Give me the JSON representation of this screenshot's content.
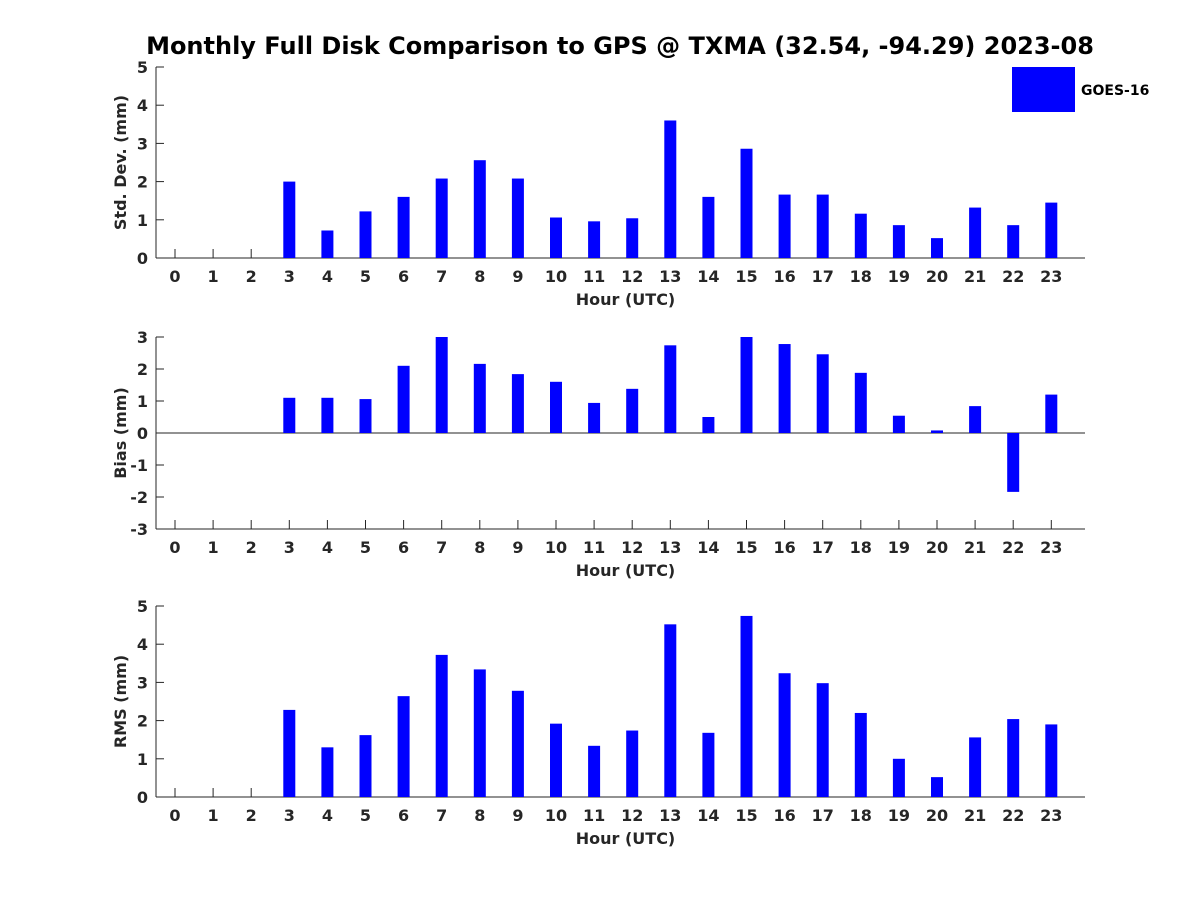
{
  "title": "Monthly Full Disk Comparison to GPS @ TXMA (32.54, -94.29) 2023-08",
  "legend": {
    "label": "GOES-16",
    "color": "#0000ff"
  },
  "chart_data": [
    {
      "type": "bar",
      "title": "Monthly Full Disk Comparison to GPS @ TXMA (32.54, -94.29) 2023-08",
      "xlabel": "Hour (UTC)",
      "ylabel": "Std. Dev. (mm)",
      "categories": [
        "0",
        "1",
        "2",
        "3",
        "4",
        "5",
        "6",
        "7",
        "8",
        "9",
        "10",
        "11",
        "12",
        "13",
        "14",
        "15",
        "16",
        "17",
        "18",
        "19",
        "20",
        "21",
        "22",
        "23"
      ],
      "series": [
        {
          "name": "GOES-16",
          "values": [
            null,
            null,
            null,
            2.0,
            0.72,
            1.22,
            1.6,
            2.08,
            2.56,
            2.08,
            1.06,
            0.96,
            1.04,
            3.6,
            1.6,
            2.86,
            1.66,
            1.66,
            1.16,
            0.86,
            0.52,
            1.32,
            0.86,
            1.45
          ]
        }
      ],
      "ylim": [
        0,
        5
      ],
      "yticks": [
        0,
        1,
        2,
        3,
        4,
        5
      ],
      "grid": false,
      "legend_position": "top-right"
    },
    {
      "type": "bar",
      "xlabel": "Hour (UTC)",
      "ylabel": "Bias (mm)",
      "categories": [
        "0",
        "1",
        "2",
        "3",
        "4",
        "5",
        "6",
        "7",
        "8",
        "9",
        "10",
        "11",
        "12",
        "13",
        "14",
        "15",
        "16",
        "17",
        "18",
        "19",
        "20",
        "21",
        "22",
        "23"
      ],
      "series": [
        {
          "name": "GOES-16",
          "values": [
            null,
            null,
            null,
            1.1,
            1.1,
            1.06,
            2.1,
            3.0,
            2.16,
            1.84,
            1.6,
            0.94,
            1.38,
            2.74,
            0.5,
            3.0,
            2.78,
            2.46,
            1.88,
            0.54,
            0.08,
            0.84,
            -1.84,
            1.2
          ]
        }
      ],
      "ylim": [
        -3,
        3
      ],
      "yticks": [
        -3,
        -2,
        -1,
        0,
        1,
        2,
        3
      ],
      "zero_line": true,
      "grid": false
    },
    {
      "type": "bar",
      "xlabel": "Hour (UTC)",
      "ylabel": "RMS (mm)",
      "categories": [
        "0",
        "1",
        "2",
        "3",
        "4",
        "5",
        "6",
        "7",
        "8",
        "9",
        "10",
        "11",
        "12",
        "13",
        "14",
        "15",
        "16",
        "17",
        "18",
        "19",
        "20",
        "21",
        "22",
        "23"
      ],
      "series": [
        {
          "name": "GOES-16",
          "values": [
            null,
            null,
            null,
            2.28,
            1.3,
            1.62,
            2.64,
            3.72,
            3.34,
            2.78,
            1.92,
            1.34,
            1.74,
            4.52,
            1.68,
            4.74,
            3.24,
            2.98,
            2.2,
            1.0,
            0.52,
            1.56,
            2.04,
            1.9
          ]
        }
      ],
      "ylim": [
        0,
        5
      ],
      "yticks": [
        0,
        1,
        2,
        3,
        4,
        5
      ],
      "grid": false
    }
  ]
}
